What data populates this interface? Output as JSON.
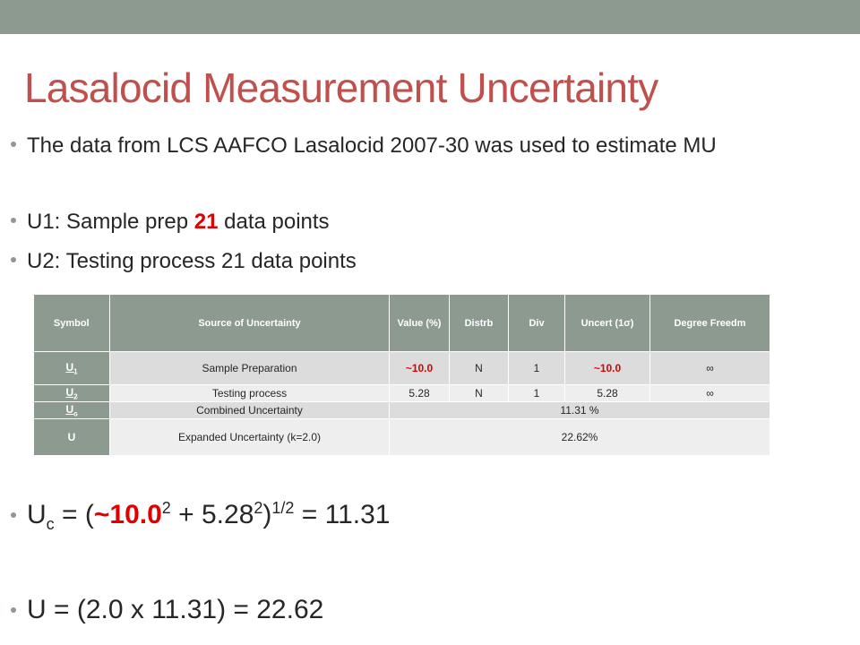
{
  "title": "Lasalocid Measurement Uncertainty",
  "bullets": {
    "b1": "The data from LCS AAFCO Lasalocid 2007-30 was used to estimate MU",
    "b2_pre": "U1: Sample prep ",
    "b2_red": "21",
    "b2_post": " data points",
    "b3": "U2: Testing process 21 data points"
  },
  "table": {
    "headers": [
      "Symbol",
      "Source of Uncertainty",
      "Value (%)",
      "Distrb",
      "Div",
      "Uncert (1σ)",
      "Degree Freedm"
    ],
    "rows": [
      {
        "symbol": "U",
        "sub": "1",
        "source": "Sample Preparation",
        "value": "~10.0",
        "distrb": "N",
        "div": "1",
        "uncert": "~10.0",
        "dof": "∞"
      },
      {
        "symbol": "U",
        "sub": "2",
        "source": "Testing process",
        "value": "5.28",
        "distrb": "N",
        "div": "1",
        "uncert": "5.28",
        "dof": "∞"
      }
    ],
    "combined": {
      "symbol": "U",
      "sub": "c",
      "source": "Combined Uncertainty",
      "value": "11.31 %"
    },
    "expanded": {
      "symbol": "U",
      "source": "Expanded Uncertainty (k=2.0)",
      "value": "22.62%"
    }
  },
  "formula_uc": {
    "lhs": "U",
    "lhs_sub": "c",
    "eq": " = (",
    "term1": "~10.0",
    "sq": "2",
    "plus": " + 5.28",
    "close": ")",
    "half": "1/2",
    "result": " = 11.31"
  },
  "formula_u": "U = (2.0 x 11.31) = 22.62"
}
